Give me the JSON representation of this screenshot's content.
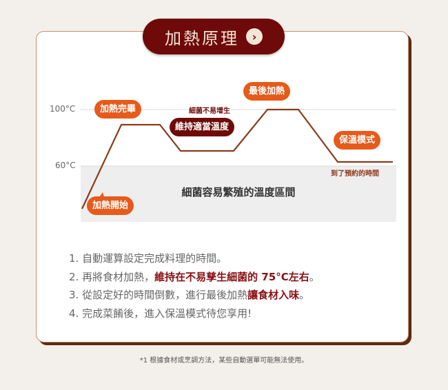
{
  "title": "加熱原理",
  "title_icon": "chevron-right-circle-icon",
  "colors": {
    "accent": "#e65a1a",
    "dark_red": "#6e0a0a",
    "curve": "#8b3a1a",
    "zone": "#eeeeee"
  },
  "axis": {
    "high": "100°C",
    "low": "60°C"
  },
  "bubbles": {
    "start": "加熱開始",
    "done": "加熱完畢",
    "maintain": "維持適當溫度",
    "final": "最後加熱",
    "warm": "保溫模式"
  },
  "notes": {
    "no_growth": "細菌不易增生",
    "time_reached": "到了預約的時間",
    "zone": "細菌容易繁殖的溫度區間"
  },
  "steps": [
    {
      "num": "1.",
      "text": "自動運算設定完成料理的時間。",
      "bold": "",
      "tail": ""
    },
    {
      "num": "2.",
      "text": "再將食材加熱，",
      "bold": "維持在不易孳生細菌的 75°C左右",
      "tail": "。"
    },
    {
      "num": "3.",
      "text": "從設定好的時間倒數，進行最後加熱",
      "bold": "讓食材入味",
      "tail": "。"
    },
    {
      "num": "4.",
      "text": "完成菜餚後，進入保溫模式待您享用!",
      "bold": "",
      "tail": ""
    }
  ],
  "footnote": "*1 根據食材或烹調方法，某些自動選單可能無法使用。"
}
